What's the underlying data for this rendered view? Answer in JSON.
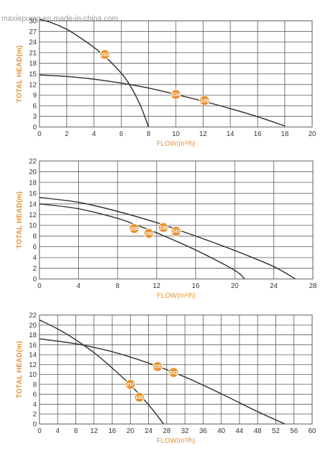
{
  "watermark": "maxiepump.en.made-in-china.com",
  "colors": {
    "axis_label": "#e8912f",
    "marker": "#e8912f",
    "curve": "#333333",
    "grid": "#555555"
  },
  "chart_data": [
    {
      "type": "line",
      "xlabel": "FLOW(m³/h)",
      "ylabel": "TOTAL HEAD(m)",
      "xlim": [
        0,
        20
      ],
      "ylim": [
        0,
        30
      ],
      "xticks": [
        0,
        2,
        4,
        6,
        8,
        10,
        12,
        14,
        16,
        18,
        20
      ],
      "yticks": [
        0,
        3,
        6,
        9,
        12,
        15,
        18,
        21,
        24,
        27,
        30
      ],
      "grid": true,
      "series": [
        {
          "x": [
            0,
            1,
            2,
            3,
            4,
            5,
            6,
            6.5,
            7,
            7.5,
            8
          ],
          "y": [
            30.5,
            29.3,
            27.6,
            25.2,
            22.5,
            19.2,
            15.2,
            12.6,
            9.3,
            5.2,
            0
          ]
        },
        {
          "x": [
            0,
            2,
            4,
            6,
            8,
            10,
            12,
            14,
            16,
            18
          ],
          "y": [
            14.7,
            14.3,
            13.5,
            12.4,
            11,
            9.2,
            7.3,
            5.2,
            2.9,
            0.3
          ]
        }
      ],
      "markers": [
        {
          "label": "233",
          "x": 4.8,
          "y": 20.5
        },
        {
          "label": "234",
          "x": 10,
          "y": 9.2
        },
        {
          "label": "239",
          "x": 12.1,
          "y": 7.5
        }
      ]
    },
    {
      "type": "line",
      "xlabel": "FLOW(m³/h)",
      "ylabel": "TOTAL HEAD(m)",
      "xlim": [
        0,
        28
      ],
      "ylim": [
        0,
        22
      ],
      "xticks": [
        0,
        4,
        8,
        12,
        16,
        20,
        24,
        28
      ],
      "yticks": [
        0,
        2,
        4,
        6,
        8,
        10,
        12,
        14,
        16,
        18,
        20,
        22
      ],
      "grid": true,
      "series": [
        {
          "x": [
            0,
            4,
            8,
            10,
            12,
            16,
            20,
            21
          ],
          "y": [
            14,
            13.1,
            11.3,
            10,
            8.6,
            5.4,
            1.6,
            0
          ]
        },
        {
          "x": [
            0,
            4,
            8,
            12,
            16,
            20,
            24,
            26.2
          ],
          "y": [
            15.2,
            14.3,
            12.6,
            10.5,
            8,
            5.3,
            2.3,
            0
          ]
        }
      ],
      "markers": [
        {
          "label": "238",
          "x": 9.7,
          "y": 9.4
        },
        {
          "label": "240",
          "x": 11.2,
          "y": 8.5
        },
        {
          "label": "236",
          "x": 12.7,
          "y": 9.6
        },
        {
          "label": "241",
          "x": 14,
          "y": 8.9
        }
      ]
    },
    {
      "type": "line",
      "xlabel": "FLOW(m³/h)",
      "ylabel": "TOTAL HEAD(m)",
      "xlim": [
        0,
        60
      ],
      "ylim": [
        0,
        22
      ],
      "xticks": [
        0,
        4,
        8,
        12,
        16,
        20,
        24,
        28,
        32,
        36,
        40,
        44,
        48,
        52,
        56,
        60
      ],
      "yticks": [
        0,
        2,
        4,
        6,
        8,
        10,
        12,
        14,
        16,
        18,
        20,
        22
      ],
      "grid": true,
      "series": [
        {
          "x": [
            0,
            4,
            8,
            12,
            16,
            20,
            24,
            26,
            27.3
          ],
          "y": [
            21,
            19.2,
            17,
            14.4,
            11.3,
            7.9,
            3.9,
            1.6,
            0
          ]
        },
        {
          "x": [
            0,
            8,
            16,
            24,
            32,
            40,
            48,
            54
          ],
          "y": [
            17.2,
            16.2,
            14.6,
            12.3,
            9.5,
            6.1,
            2.5,
            0
          ]
        }
      ],
      "markers": [
        {
          "label": "237",
          "x": 20,
          "y": 8
        },
        {
          "label": "242",
          "x": 22,
          "y": 5.4
        },
        {
          "label": "235",
          "x": 26,
          "y": 11.6
        },
        {
          "label": "243",
          "x": 29.5,
          "y": 10.4
        }
      ]
    }
  ]
}
